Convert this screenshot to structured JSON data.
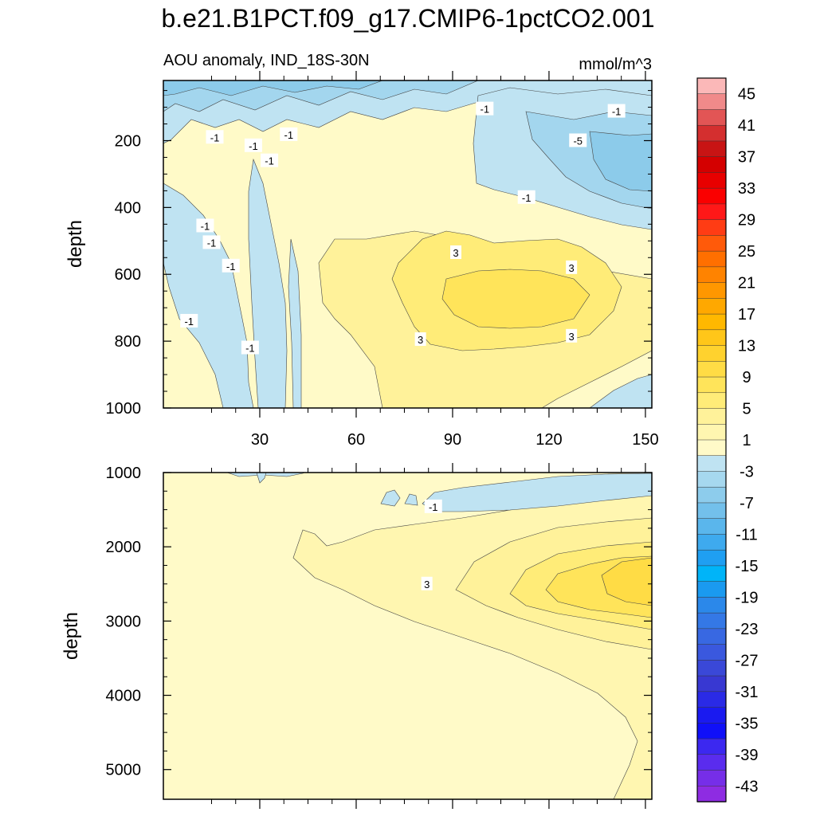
{
  "chart_data": {
    "type": "contour",
    "title": "b.e21.B1PCT.f09_g17.CMIP6-1pctCO2.001",
    "subtitle_left": "AOU anomaly, IND_18S-30N",
    "subtitle_right": "mmol/m^3",
    "xlabel": "",
    "ylabel": "depth",
    "x_range": [
      0,
      152
    ],
    "x_ticks": [
      "30",
      "60",
      "90",
      "120",
      "150"
    ],
    "x_tick_values": [
      30,
      60,
      90,
      120,
      150
    ],
    "panels": [
      {
        "name": "upper",
        "ylim": [
          1000,
          20
        ],
        "y_ticks": [
          "200",
          "400",
          "600",
          "800",
          "1000"
        ],
        "y_tick_values": [
          200,
          400,
          600,
          800,
          1000
        ],
        "contour_labels": [
          {
            "text": "-1",
            "x": 100,
            "y": 105
          },
          {
            "text": "-1",
            "x": 141,
            "y": 112
          },
          {
            "text": "-1",
            "x": 39,
            "y": 182
          },
          {
            "text": "-1",
            "x": 28,
            "y": 215
          },
          {
            "text": "-1",
            "x": 16,
            "y": 190
          },
          {
            "text": "-5",
            "x": 129,
            "y": 200
          },
          {
            "text": "-1",
            "x": 113,
            "y": 370
          },
          {
            "text": "-1",
            "x": 33,
            "y": 260
          },
          {
            "text": "-1",
            "x": 15,
            "y": 505
          },
          {
            "text": "-1",
            "x": 13,
            "y": 455
          },
          {
            "text": "-1",
            "x": 21,
            "y": 575
          },
          {
            "text": "3",
            "x": 91,
            "y": 535
          },
          {
            "text": "3",
            "x": 127,
            "y": 580
          },
          {
            "text": "-1",
            "x": 8,
            "y": 740
          },
          {
            "text": "-1",
            "x": 27,
            "y": 820
          },
          {
            "text": "3",
            "x": 80,
            "y": 795
          },
          {
            "text": "3",
            "x": 127,
            "y": 785
          }
        ]
      },
      {
        "name": "lower",
        "ylim": [
          5400,
          1000
        ],
        "y_ticks": [
          "1000",
          "2000",
          "3000",
          "4000",
          "5000"
        ],
        "y_tick_values": [
          1000,
          2000,
          3000,
          4000,
          5000
        ],
        "contour_labels": [
          {
            "text": "-1",
            "x": 84,
            "y": 1460
          },
          {
            "text": "3",
            "x": 82,
            "y": 2500
          }
        ]
      }
    ],
    "colorbar": {
      "labels": [
        "45",
        "41",
        "37",
        "33",
        "29",
        "25",
        "21",
        "17",
        "13",
        "9",
        "5",
        "1",
        "-3",
        "-7",
        "-11",
        "-15",
        "-19",
        "-23",
        "-27",
        "-31",
        "-35",
        "-39",
        "-43"
      ],
      "colors": [
        "#fbb8b8",
        "#f08a8a",
        "#e25555",
        "#d42f2f",
        "#c81414",
        "#d40000",
        "#e80000",
        "#fa0000",
        "#ff1818",
        "#ff3c14",
        "#ff5a0a",
        "#ff6f00",
        "#ff8300",
        "#ff9700",
        "#ffa800",
        "#ffb800",
        "#ffc619",
        "#ffd22e",
        "#ffdc45",
        "#ffe45a",
        "#ffec78",
        "#fff29a",
        "#fff6b0",
        "#fffac8",
        "#bfe3f2",
        "#a6d8ef",
        "#8dccec",
        "#73c0eb",
        "#5ab6ec",
        "#3eaaee",
        "#1f9ff2",
        "#00b4f8",
        "#1a9af0",
        "#2b88ea",
        "#3478e6",
        "#3868e2",
        "#3a58de",
        "#3a48d8",
        "#3838d2",
        "#2a2ae6",
        "#1a1af0",
        "#1010f8",
        "#3c28f0",
        "#5a2cee",
        "#762ee8",
        "#8e2ce2"
      ]
    },
    "fill_levels": {
      "neg1": "#bfe3f2",
      "neg5": "#a3d6ee",
      "neg9": "#8ccbea",
      "pos1": "#fffac8",
      "pos3": "#fff6b0",
      "pos5": "#fff29a",
      "pos7": "#ffec78",
      "pos9": "#ffe45a",
      "pos11": "#ffdc45"
    }
  }
}
